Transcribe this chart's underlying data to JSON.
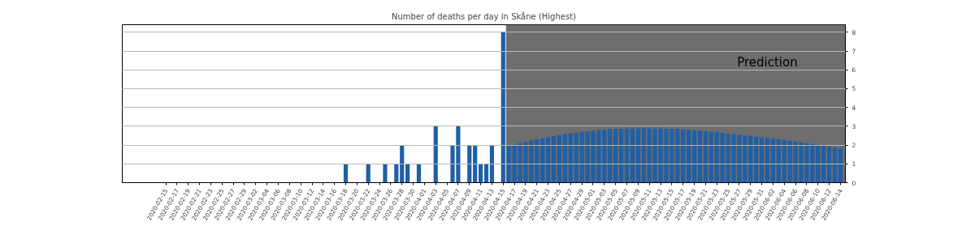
{
  "chart_data": {
    "type": "bar",
    "title": "Number of deaths per day in Skåne (Highest)",
    "x": [
      "2020-03-18",
      "2020-03-22",
      "2020-03-25",
      "2020-03-27",
      "2020-03-28",
      "2020-03-29",
      "2020-03-31",
      "2020-04-03",
      "2020-04-06",
      "2020-04-07",
      "2020-04-09",
      "2020-04-10",
      "2020-04-11",
      "2020-04-12",
      "2020-04-13",
      "2020-04-15",
      "2020-04-16",
      "2020-04-17",
      "2020-04-18",
      "2020-04-19",
      "2020-04-20",
      "2020-04-21",
      "2020-04-22",
      "2020-04-23",
      "2020-04-24",
      "2020-04-25",
      "2020-04-26",
      "2020-04-27",
      "2020-04-28",
      "2020-04-29",
      "2020-04-30",
      "2020-05-01",
      "2020-05-02",
      "2020-05-03",
      "2020-05-04",
      "2020-05-05",
      "2020-05-06",
      "2020-05-07",
      "2020-05-08",
      "2020-05-09",
      "2020-05-10",
      "2020-05-11",
      "2020-05-12",
      "2020-05-13",
      "2020-05-14",
      "2020-05-15",
      "2020-05-16",
      "2020-05-17",
      "2020-05-18",
      "2020-05-19",
      "2020-05-20",
      "2020-05-21",
      "2020-05-22",
      "2020-05-23",
      "2020-05-24",
      "2020-05-25",
      "2020-05-26",
      "2020-05-27",
      "2020-05-28",
      "2020-05-29",
      "2020-05-30",
      "2020-05-31",
      "2020-06-01",
      "2020-06-02",
      "2020-06-03",
      "2020-06-04",
      "2020-06-05",
      "2020-06-06",
      "2020-06-07",
      "2020-06-08",
      "2020-06-09",
      "2020-06-10",
      "2020-06-11",
      "2020-06-12",
      "2020-06-13",
      "2020-06-14"
    ],
    "values": [
      1,
      1,
      1,
      1,
      2,
      1,
      1,
      3,
      2,
      3,
      2,
      2,
      1,
      1,
      2,
      8,
      1.98,
      2.01,
      2.1,
      2.16,
      2.25,
      2.3,
      2.36,
      2.41,
      2.48,
      2.52,
      2.57,
      2.62,
      2.66,
      2.7,
      2.74,
      2.77,
      2.8,
      2.82,
      2.85,
      2.86,
      2.87,
      2.89,
      2.89,
      2.9,
      2.9,
      2.9,
      2.89,
      2.89,
      2.87,
      2.87,
      2.86,
      2.84,
      2.81,
      2.79,
      2.76,
      2.74,
      2.71,
      2.69,
      2.65,
      2.61,
      2.59,
      2.55,
      2.51,
      2.49,
      2.45,
      2.41,
      2.38,
      2.34,
      2.3,
      2.26,
      2.23,
      2.19,
      2.14,
      2.1,
      2.05,
      2.01,
      1.97,
      1.92,
      1.87,
      1.82
    ],
    "color": "#1f5fa6",
    "xlim": [
      "2020-02-07T06:00",
      "2020-06-14T21:00"
    ],
    "xticks": [
      "2020-02-15",
      "2020-02-17",
      "2020-02-19",
      "2020-02-21",
      "2020-02-23",
      "2020-02-25",
      "2020-02-27",
      "2020-02-29",
      "2020-03-02",
      "2020-03-04",
      "2020-03-06",
      "2020-03-08",
      "2020-03-10",
      "2020-03-12",
      "2020-03-14",
      "2020-03-16",
      "2020-03-18",
      "2020-03-20",
      "2020-03-22",
      "2020-03-24",
      "2020-03-26",
      "2020-03-28",
      "2020-03-30",
      "2020-04-01",
      "2020-04-03",
      "2020-04-05",
      "2020-04-07",
      "2020-04-09",
      "2020-04-11",
      "2020-04-13",
      "2020-04-15",
      "2020-04-17",
      "2020-04-19",
      "2020-04-21",
      "2020-04-23",
      "2020-04-25",
      "2020-04-27",
      "2020-04-29",
      "2020-05-01",
      "2020-05-03",
      "2020-05-05",
      "2020-05-07",
      "2020-05-09",
      "2020-05-11",
      "2020-05-13",
      "2020-05-15",
      "2020-05-17",
      "2020-05-19",
      "2020-05-21",
      "2020-05-23",
      "2020-05-25",
      "2020-05-27",
      "2020-05-29",
      "2020-05-31",
      "2020-06-02",
      "2020-06-04",
      "2020-06-06",
      "2020-06-08",
      "2020-06-10",
      "2020-06-12",
      "2020-06-14"
    ],
    "ylim": [
      0,
      8.4
    ],
    "yticks": [
      0,
      1,
      2,
      3,
      4,
      5,
      6,
      7,
      8
    ],
    "grid": "y",
    "bands": [
      {
        "axis": "x",
        "from": "2020-04-15T12:00",
        "to": "2020-06-14T21:00",
        "label": "Prediction",
        "color": "#6e6e6e"
      }
    ]
  }
}
